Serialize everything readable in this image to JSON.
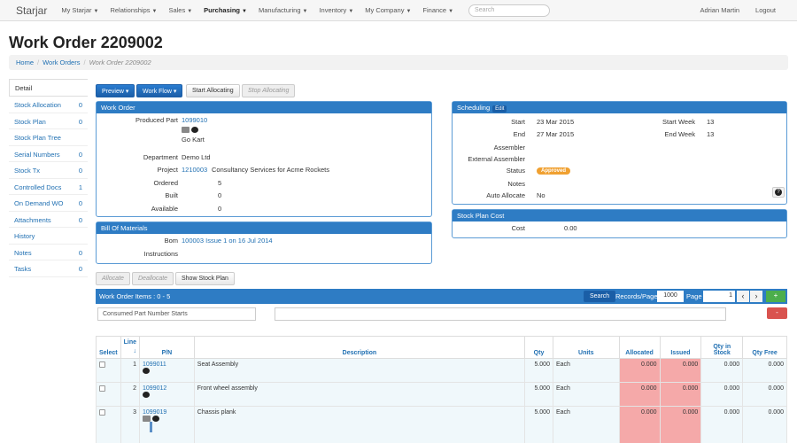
{
  "navbar": {
    "brand": "Starjar",
    "items": [
      {
        "label": "My Starjar",
        "active": false
      },
      {
        "label": "Relationships",
        "active": false
      },
      {
        "label": "Sales",
        "active": false
      },
      {
        "label": "Purchasing",
        "active": true
      },
      {
        "label": "Manufacturing",
        "active": false
      },
      {
        "label": "Inventory",
        "active": false
      },
      {
        "label": "My Company",
        "active": false
      },
      {
        "label": "Finance",
        "active": false
      }
    ],
    "search_placeholder": "Search",
    "user": "Adrian Martin",
    "logout": "Logout"
  },
  "page_title": "Work Order 2209002",
  "breadcrumb": {
    "home": "Home",
    "work_orders": "Work Orders",
    "current": "Work Order 2209002"
  },
  "sidebar": {
    "items": [
      {
        "label": "Detail",
        "count": ""
      },
      {
        "label": "Stock Allocation",
        "count": "0"
      },
      {
        "label": "Stock Plan",
        "count": "0"
      },
      {
        "label": "Stock Plan Tree",
        "count": ""
      },
      {
        "label": "Serial Numbers",
        "count": "0"
      },
      {
        "label": "Stock Tx",
        "count": "0"
      },
      {
        "label": "Controlled Docs",
        "count": "1"
      },
      {
        "label": "On Demand WO",
        "count": "0"
      },
      {
        "label": "Attachments",
        "count": "0"
      },
      {
        "label": "History",
        "count": ""
      },
      {
        "label": "Notes",
        "count": "0"
      },
      {
        "label": "Tasks",
        "count": "0"
      }
    ]
  },
  "toolbar": {
    "preview": "Preview",
    "work_flow": "Work Flow",
    "start_allocating": "Start Allocating",
    "stop_allocating": "Stop Allocating"
  },
  "work_order": {
    "title": "Work Order",
    "produced_part_label": "Produced Part",
    "produced_part": "1099010",
    "part_name": "Go Kart",
    "department_label": "Department",
    "department": "Demo Ltd",
    "project_label": "Project",
    "project_code": "1210003",
    "project_name": "Consultancy Services for Acme Rockets",
    "ordered_label": "Ordered",
    "ordered": "5",
    "built_label": "Built",
    "built": "0",
    "available_label": "Available",
    "available": "0"
  },
  "bom": {
    "title": "Bill Of Materials",
    "bom_label": "Bom",
    "bom_value": "100003 Issue 1 on 16 Jul 2014",
    "instructions_label": "Instructions"
  },
  "scheduling": {
    "title": "Scheduling",
    "edit": "Edit",
    "start_label": "Start",
    "start": "23 Mar 2015",
    "end_label": "End",
    "end": "27 Mar 2015",
    "start_week_label": "Start Week",
    "start_week": "13",
    "end_week_label": "End Week",
    "end_week": "13",
    "assembler_label": "Assembler",
    "external_assembler_label": "External Assembler",
    "status_label": "Status",
    "status": "Approved",
    "notes_label": "Notes",
    "auto_allocate_label": "Auto Allocate",
    "auto_allocate": "No"
  },
  "stock_plan_cost": {
    "title": "Stock Plan Cost",
    "cost_label": "Cost",
    "cost": "0.00"
  },
  "actions": {
    "allocate": "Allocate",
    "deallocate": "Deallocate",
    "show_stock_plan": "Show Stock Plan"
  },
  "items_bar": {
    "title": "Work Order Items : 0 - 5",
    "search": "Search",
    "records_label": "Records/Page",
    "records": "1000",
    "page_label": "Page",
    "page": "1",
    "prev": "‹",
    "next": "›",
    "add": "+",
    "remove": "-"
  },
  "filter": {
    "part_starts": "Consumed Part Number Starts"
  },
  "table": {
    "headers": {
      "select": "Select",
      "line": "Line",
      "pn": "P/N",
      "description": "Description",
      "qty": "Qty",
      "units": "Units",
      "allocated": "Allocated",
      "issued": "Issued",
      "qty_in_stock": "Qty in Stock",
      "qty_free": "Qty Free"
    },
    "sort_arrow": "↓",
    "rows": [
      {
        "line": "1",
        "pn": "1099011",
        "description": "Seat Assembly",
        "qty": "5.000",
        "units": "Each",
        "allocated": "0.000",
        "issued": "0.000",
        "in_stock": "0.000",
        "free": "0.000"
      },
      {
        "line": "2",
        "pn": "1099012",
        "description": "Front wheel assembly",
        "qty": "5.000",
        "units": "Each",
        "allocated": "0.000",
        "issued": "0.000",
        "in_stock": "0.000",
        "free": "0.000"
      },
      {
        "line": "3",
        "pn": "1099019",
        "description": "Chassis plank",
        "qty": "5.000",
        "units": "Each",
        "allocated": "0.000",
        "issued": "0.000",
        "in_stock": "0.000",
        "free": "0.000"
      }
    ]
  },
  "colors": {
    "primary": "#2e7cc4",
    "allocated_bg": "#f5a9a9",
    "approved": "#f0a030",
    "add_green": "#4cae4c",
    "remove_red": "#d9534f"
  }
}
